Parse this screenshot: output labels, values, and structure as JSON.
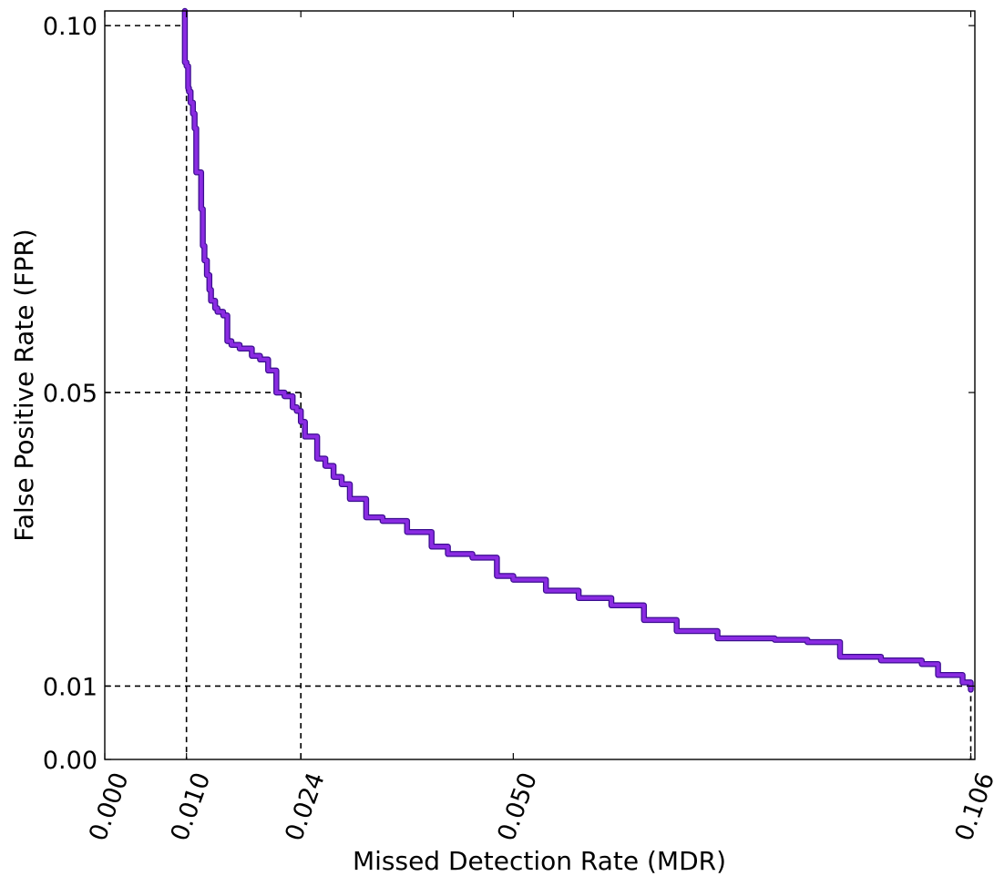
{
  "chart_data": {
    "type": "line",
    "xlabel": "Missed Detection Rate (MDR)",
    "ylabel": "False Positive Rate (FPR)",
    "xlim": [
      0.0,
      0.1065
    ],
    "ylim": [
      0.0,
      0.102
    ],
    "xticks": [
      0.0,
      0.01,
      0.024,
      0.05,
      0.106
    ],
    "xtick_labels": [
      "0.000",
      "0.010",
      "0.024",
      "0.050",
      "0.106"
    ],
    "yticks": [
      0.0,
      0.01,
      0.05,
      0.1
    ],
    "ytick_labels": [
      "0.00",
      "0.01",
      "0.05",
      "0.10"
    ],
    "grid": false,
    "series": [
      {
        "color": "#8a2be2",
        "x": [
          0.0098,
          0.0098,
          0.01,
          0.0102,
          0.0103,
          0.0105,
          0.0108,
          0.011,
          0.0112,
          0.0118,
          0.012,
          0.0122,
          0.0125,
          0.0128,
          0.013,
          0.0135,
          0.0138,
          0.0145,
          0.015,
          0.0155,
          0.0165,
          0.018,
          0.019,
          0.02,
          0.021,
          0.022,
          0.023,
          0.0235,
          0.024,
          0.0245,
          0.026,
          0.027,
          0.028,
          0.029,
          0.03,
          0.032,
          0.034,
          0.037,
          0.04,
          0.042,
          0.045,
          0.048,
          0.05,
          0.054,
          0.058,
          0.062,
          0.066,
          0.07,
          0.075,
          0.082,
          0.086,
          0.09,
          0.095,
          0.1,
          0.102,
          0.105,
          0.106
        ],
        "y": [
          0.102,
          0.095,
          0.0945,
          0.0915,
          0.091,
          0.0895,
          0.088,
          0.086,
          0.08,
          0.075,
          0.07,
          0.068,
          0.066,
          0.064,
          0.0625,
          0.0615,
          0.061,
          0.0605,
          0.057,
          0.0565,
          0.056,
          0.055,
          0.0545,
          0.053,
          0.05,
          0.0495,
          0.048,
          0.0475,
          0.046,
          0.044,
          0.041,
          0.04,
          0.0385,
          0.0375,
          0.0355,
          0.033,
          0.0325,
          0.031,
          0.029,
          0.028,
          0.0275,
          0.025,
          0.0245,
          0.023,
          0.022,
          0.021,
          0.019,
          0.0175,
          0.0165,
          0.0163,
          0.016,
          0.014,
          0.0135,
          0.013,
          0.0115,
          0.0105,
          0.0095
        ]
      }
    ],
    "reference_lines": [
      {
        "x": 0.01,
        "y": 0.1
      },
      {
        "x": 0.024,
        "y": 0.05
      },
      {
        "x": 0.106,
        "y": 0.01
      }
    ]
  }
}
